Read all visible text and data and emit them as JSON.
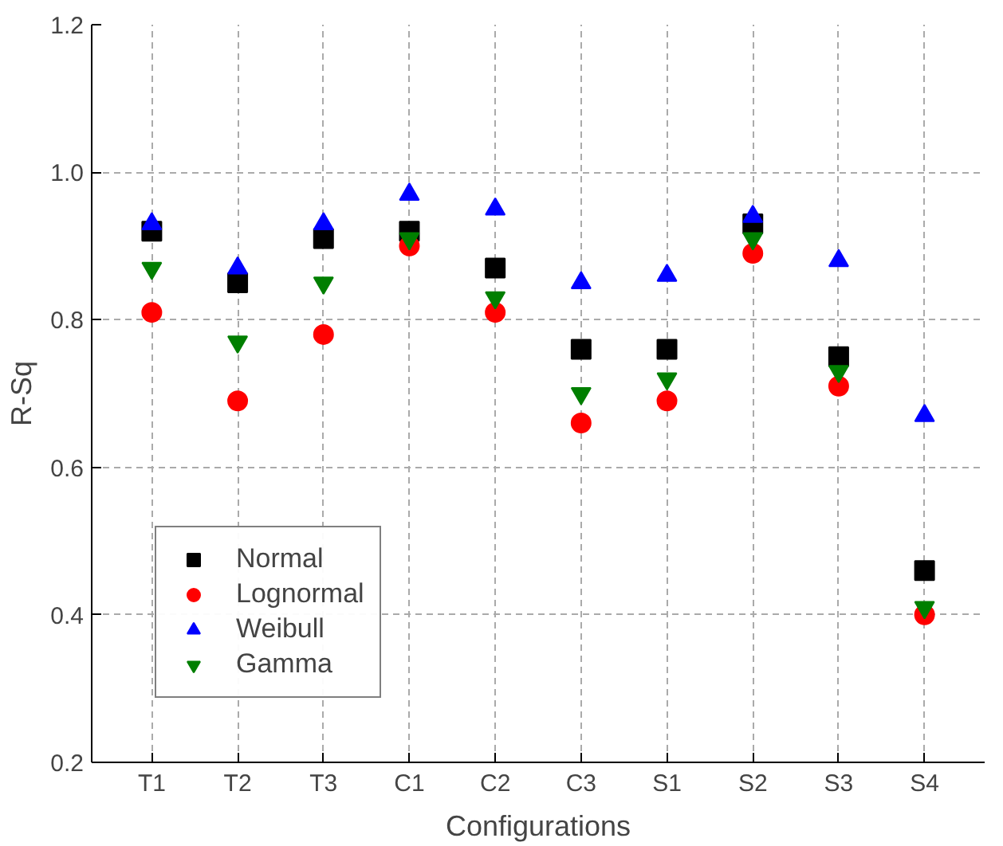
{
  "chart_data": {
    "type": "scatter",
    "xlabel": "Configurations",
    "ylabel": "R-Sq",
    "categories": [
      "T1",
      "T2",
      "T3",
      "C1",
      "C2",
      "C3",
      "S1",
      "S2",
      "S3",
      "S4"
    ],
    "series": [
      {
        "name": "Normal",
        "color": "#000000",
        "marker": "square",
        "values": [
          0.92,
          0.85,
          0.91,
          0.92,
          0.87,
          0.76,
          0.76,
          0.93,
          0.75,
          0.46
        ]
      },
      {
        "name": "Lognormal",
        "color": "#ff0000",
        "marker": "circle",
        "values": [
          0.81,
          0.69,
          0.78,
          0.9,
          0.81,
          0.66,
          0.69,
          0.89,
          0.71,
          0.4
        ]
      },
      {
        "name": "Weibull",
        "color": "#0000ff",
        "marker": "triangle",
        "values": [
          0.93,
          0.87,
          0.93,
          0.97,
          0.95,
          0.85,
          0.86,
          0.94,
          0.88,
          0.67
        ]
      },
      {
        "name": "Gamma",
        "color": "#007f00",
        "marker": "triangle",
        "values": [
          0.87,
          0.77,
          0.85,
          0.91,
          0.83,
          0.7,
          0.72,
          0.91,
          0.73,
          0.41
        ]
      }
    ],
    "ylim": [
      0.2,
      1.2
    ],
    "yticks": [
      0.2,
      0.4,
      0.6,
      0.8,
      {
        "value": 1.0,
        "label": "1.0"
      },
      1.2
    ],
    "grid": true,
    "legend": "bottom left"
  }
}
